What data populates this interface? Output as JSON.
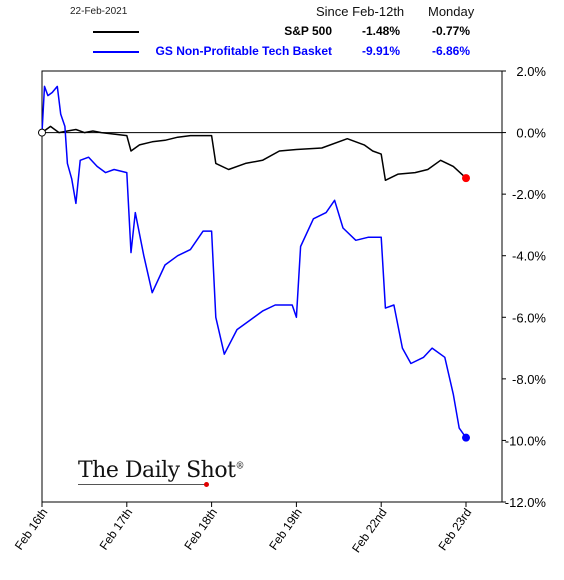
{
  "legend": {
    "date": "22-Feb-2021",
    "col1_header": "Since Feb-12th",
    "col2_header": "Monday",
    "rows": [
      {
        "name": "S&P 500",
        "since": "-1.48%",
        "monday": "-0.77%",
        "color": "#000000"
      },
      {
        "name": "GS Non-Profitable Tech Basket",
        "since": "-9.91%",
        "monday": "-6.86%",
        "color": "#0000ff"
      }
    ]
  },
  "logo": {
    "text": "The Daily Shot",
    "mark": "®"
  },
  "chart_data": {
    "type": "line",
    "x_labels": [
      "Feb 16th",
      "Feb 17th",
      "Feb 18th",
      "Feb 19th",
      "Feb 22nd",
      "Feb 23rd"
    ],
    "ylim": [
      -12,
      2
    ],
    "yticks": [
      2,
      0,
      -2,
      -4,
      -6,
      -8,
      -10,
      -12
    ],
    "ytick_labels": [
      "2.0%",
      "0.0%",
      "-2.0%",
      "-4.0%",
      "-6.0%",
      "-8.0%",
      "-10.0%",
      "-12.0%"
    ],
    "grid": false,
    "series": [
      {
        "name": "S&P 500",
        "color": "#000000",
        "end_marker_color": "#ff0000",
        "points": [
          [
            0,
            0.0
          ],
          [
            0.05,
            0.1
          ],
          [
            0.1,
            0.2
          ],
          [
            0.15,
            0.1
          ],
          [
            0.2,
            0.0
          ],
          [
            0.3,
            0.05
          ],
          [
            0.4,
            0.1
          ],
          [
            0.5,
            0.0
          ],
          [
            0.6,
            0.05
          ],
          [
            0.7,
            0.0
          ],
          [
            0.85,
            -0.05
          ],
          [
            1.0,
            -0.1
          ],
          [
            1.05,
            -0.6
          ],
          [
            1.15,
            -0.4
          ],
          [
            1.3,
            -0.3
          ],
          [
            1.45,
            -0.25
          ],
          [
            1.6,
            -0.15
          ],
          [
            1.75,
            -0.1
          ],
          [
            2.0,
            -0.1
          ],
          [
            2.05,
            -1.0
          ],
          [
            2.2,
            -1.2
          ],
          [
            2.4,
            -1.0
          ],
          [
            2.6,
            -0.9
          ],
          [
            2.8,
            -0.6
          ],
          [
            3.0,
            -0.55
          ],
          [
            3.3,
            -0.5
          ],
          [
            3.6,
            -0.2
          ],
          [
            3.8,
            -0.4
          ],
          [
            3.9,
            -0.6
          ],
          [
            4.0,
            -0.7
          ],
          [
            4.05,
            -1.55
          ],
          [
            4.2,
            -1.35
          ],
          [
            4.4,
            -1.3
          ],
          [
            4.55,
            -1.2
          ],
          [
            4.7,
            -0.9
          ],
          [
            4.85,
            -1.1
          ],
          [
            5.0,
            -1.48
          ]
        ]
      },
      {
        "name": "GS Non-Profitable Tech Basket",
        "color": "#0000ff",
        "end_marker_color": "#0000ff",
        "points": [
          [
            0,
            0.0
          ],
          [
            0.03,
            1.5
          ],
          [
            0.07,
            1.2
          ],
          [
            0.12,
            1.3
          ],
          [
            0.18,
            1.5
          ],
          [
            0.22,
            0.6
          ],
          [
            0.27,
            0.2
          ],
          [
            0.3,
            -1.0
          ],
          [
            0.35,
            -1.5
          ],
          [
            0.4,
            -2.3
          ],
          [
            0.45,
            -0.9
          ],
          [
            0.55,
            -0.8
          ],
          [
            0.65,
            -1.1
          ],
          [
            0.75,
            -1.3
          ],
          [
            0.85,
            -1.2
          ],
          [
            1.0,
            -1.3
          ],
          [
            1.05,
            -3.9
          ],
          [
            1.1,
            -2.6
          ],
          [
            1.2,
            -4.0
          ],
          [
            1.3,
            -5.2
          ],
          [
            1.45,
            -4.3
          ],
          [
            1.6,
            -4.0
          ],
          [
            1.75,
            -3.8
          ],
          [
            1.9,
            -3.2
          ],
          [
            2.0,
            -3.2
          ],
          [
            2.05,
            -6.0
          ],
          [
            2.15,
            -7.2
          ],
          [
            2.3,
            -6.4
          ],
          [
            2.45,
            -6.1
          ],
          [
            2.6,
            -5.8
          ],
          [
            2.75,
            -5.6
          ],
          [
            2.95,
            -5.6
          ],
          [
            3.0,
            -6.0
          ],
          [
            3.05,
            -3.7
          ],
          [
            3.2,
            -2.8
          ],
          [
            3.35,
            -2.6
          ],
          [
            3.45,
            -2.2
          ],
          [
            3.55,
            -3.1
          ],
          [
            3.7,
            -3.5
          ],
          [
            3.85,
            -3.4
          ],
          [
            4.0,
            -3.4
          ],
          [
            4.05,
            -5.7
          ],
          [
            4.15,
            -5.6
          ],
          [
            4.25,
            -7.0
          ],
          [
            4.35,
            -7.5
          ],
          [
            4.5,
            -7.3
          ],
          [
            4.6,
            -7.0
          ],
          [
            4.75,
            -7.3
          ],
          [
            4.85,
            -8.5
          ],
          [
            4.92,
            -9.6
          ],
          [
            5.0,
            -9.91
          ]
        ]
      }
    ]
  }
}
